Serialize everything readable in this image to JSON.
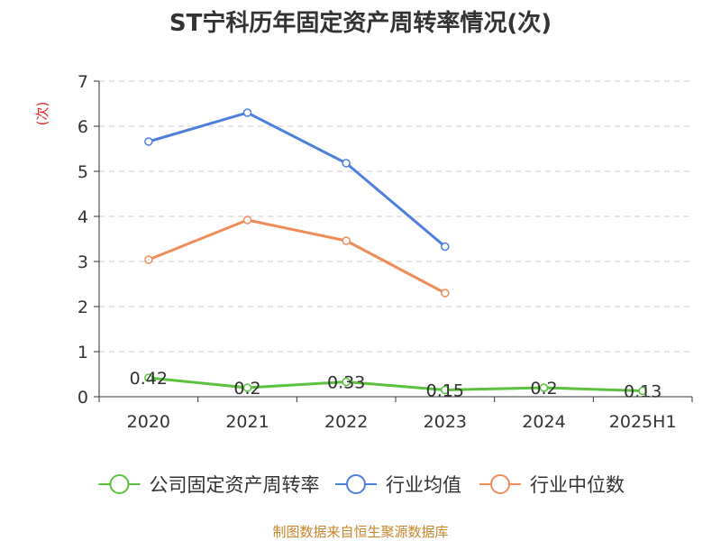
{
  "chart_data": {
    "type": "line",
    "title": "ST宁科历年固定资产周转率情况(次)",
    "ylabel": "(次)",
    "xlabel": "",
    "ylim": [
      0,
      7
    ],
    "yticks": [
      "0",
      "1",
      "2",
      "3",
      "4",
      "5",
      "6",
      "7"
    ],
    "categories": [
      "2020",
      "2021",
      "2022",
      "2023",
      "2024",
      "2025H1"
    ],
    "grid": true,
    "legend_position": "bottom",
    "series": [
      {
        "name": "公司固定资产周转率",
        "color": "#5ac23d",
        "values": [
          0.42,
          0.2,
          0.33,
          0.15,
          0.2,
          0.13
        ],
        "labels": [
          "0.42",
          "0.2",
          "0.33",
          "0.15",
          "0.2",
          "0.13"
        ]
      },
      {
        "name": "行业均值",
        "color": "#4e7fdc",
        "values": [
          5.66,
          6.3,
          5.18,
          3.33,
          null,
          null
        ]
      },
      {
        "name": "行业中位数",
        "color": "#f08c5a",
        "values": [
          3.04,
          3.92,
          3.46,
          2.3,
          null,
          null
        ]
      }
    ],
    "source": "制图数据来自恒生聚源数据库"
  }
}
